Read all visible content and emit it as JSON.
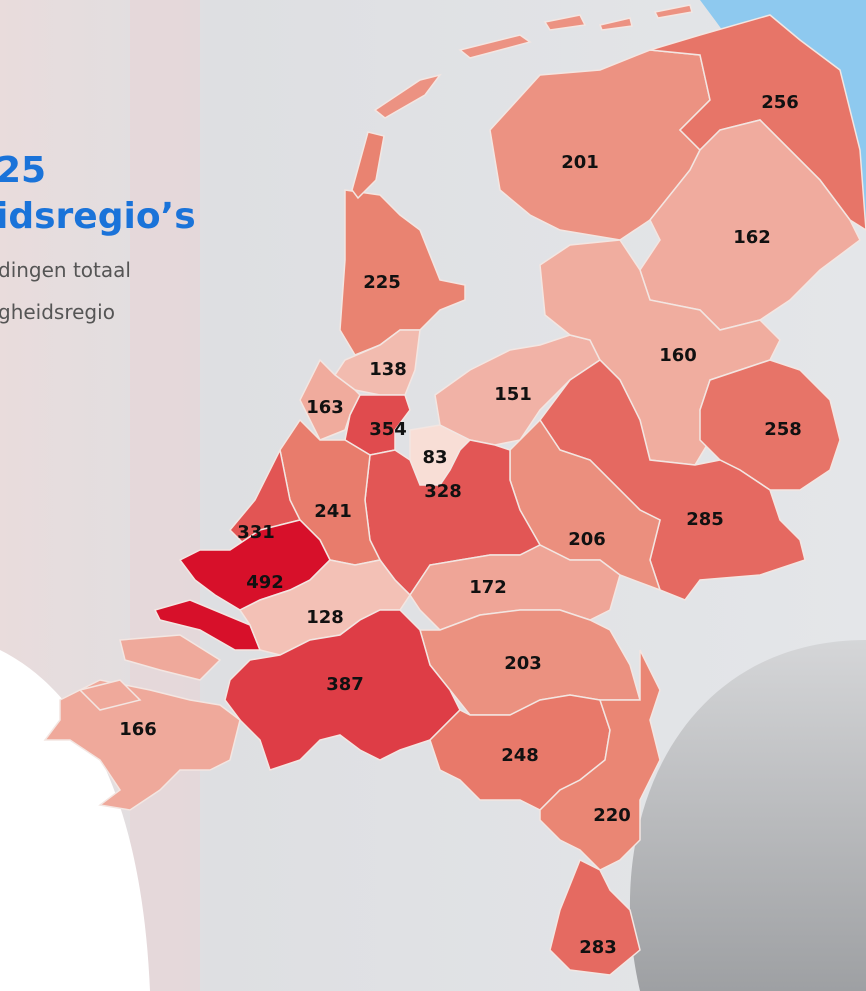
{
  "header": {
    "title_lines": [
      "25",
      "idsregio’s"
    ],
    "description_lines": [
      "dingen totaal",
      "gheidsregio"
    ]
  },
  "regions": [
    {
      "value": 201
    },
    {
      "value": 256
    },
    {
      "value": 162
    },
    {
      "value": 225
    },
    {
      "value": 138
    },
    {
      "value": 163
    },
    {
      "value": 354
    },
    {
      "value": 83
    },
    {
      "value": 151
    },
    {
      "value": 160
    },
    {
      "value": 258
    },
    {
      "value": 285
    },
    {
      "value": 206
    },
    {
      "value": 328
    },
    {
      "value": 241
    },
    {
      "value": 331
    },
    {
      "value": 492
    },
    {
      "value": 128
    },
    {
      "value": 172
    },
    {
      "value": 203
    },
    {
      "value": 387
    },
    {
      "value": 166
    },
    {
      "value": 248
    },
    {
      "value": 220
    },
    {
      "value": 283
    }
  ]
}
